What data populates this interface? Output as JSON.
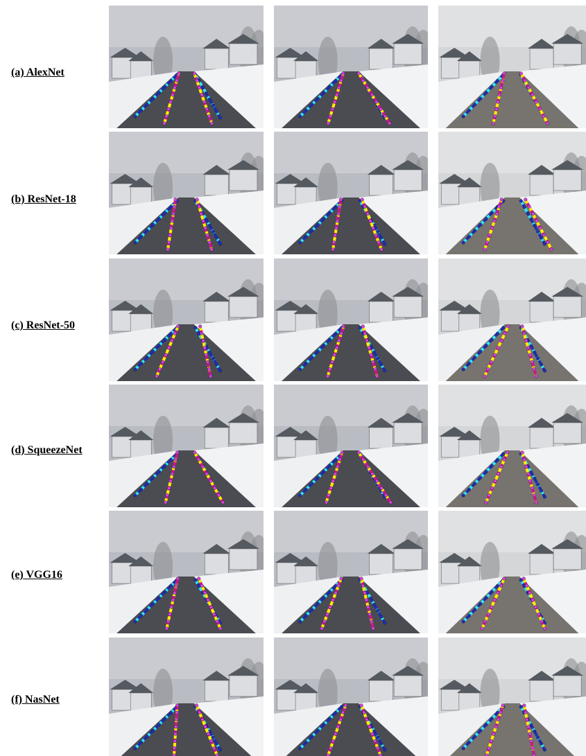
{
  "rows": [
    {
      "label": "(a) AlexNet"
    },
    {
      "label": "(b) ResNet-18"
    },
    {
      "label": "(c) ResNet-50"
    },
    {
      "label": "(d) SqueezeNet"
    },
    {
      "label": "(e) VGG16"
    },
    {
      "label": "(f) NasNet"
    }
  ]
}
